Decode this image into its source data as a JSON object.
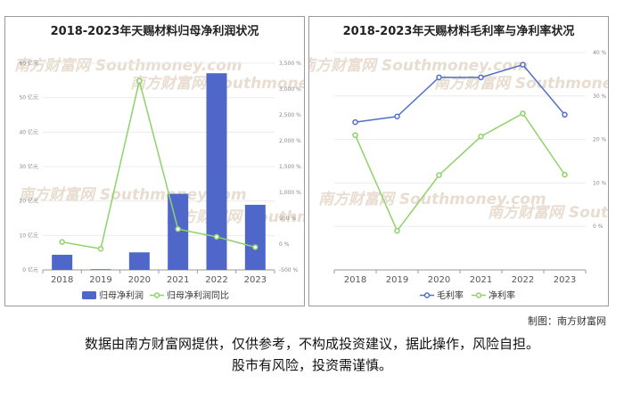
{
  "watermark": "南方财富网 Southmoney.com",
  "footer": {
    "credit": "制图：南方财富网",
    "disclaimer_line1": "数据由南方财富网提供，仅供参考，不构成投资建议，据此操作，风险自担。",
    "disclaimer_line2": "股市有风险，投资需谨慎。"
  },
  "colors": {
    "bar": "#4e67c8",
    "line_green": "#8fd26a",
    "line_blue": "#5470c6"
  },
  "chart_data": [
    {
      "type": "bar",
      "title": "2018-2023年天赐材料归母净利润状况",
      "categories": [
        "2018",
        "2019",
        "2020",
        "2021",
        "2022",
        "2023"
      ],
      "y_left": {
        "ticks": [
          "0 亿元",
          "10 亿元",
          "20 亿元",
          "30 亿元",
          "40 亿元",
          "50 亿元",
          "60 亿元"
        ],
        "ylim": [
          0,
          60
        ]
      },
      "y_right": {
        "ticks": [
          "-500 %",
          "0 %",
          "500 %",
          "1,000 %",
          "1,500 %",
          "2,000 %",
          "2,500 %",
          "3,000 %",
          "3,500 %"
        ],
        "ylim": [
          -500,
          3500
        ]
      },
      "series": [
        {
          "name": "归母净利润",
          "type": "bar",
          "axis": "left",
          "values": [
            4.4,
            0.2,
            5.1,
            22.1,
            57.1,
            18.9
          ]
        },
        {
          "name": "归母净利润同比",
          "type": "line",
          "axis": "right",
          "values": [
            40,
            -90,
            3160,
            290,
            140,
            -60
          ]
        }
      ],
      "legend": "bottom"
    },
    {
      "type": "line",
      "title": "2018-2023年天赐材料毛利率与净利率状况",
      "categories": [
        "2018",
        "2019",
        "2020",
        "2021",
        "2022",
        "2023"
      ],
      "y_right": {
        "ticks": [
          "0 %",
          "10 %",
          "20 %",
          "30 %",
          "40 %"
        ],
        "ylim": [
          -10,
          40
        ]
      },
      "series": [
        {
          "name": "毛利率",
          "values": [
            24,
            25.3,
            34.3,
            34.3,
            37.2,
            25.7
          ]
        },
        {
          "name": "净利率",
          "values": [
            21,
            -1,
            11.8,
            20.7,
            26,
            11.9
          ]
        }
      ],
      "legend": "bottom"
    }
  ]
}
